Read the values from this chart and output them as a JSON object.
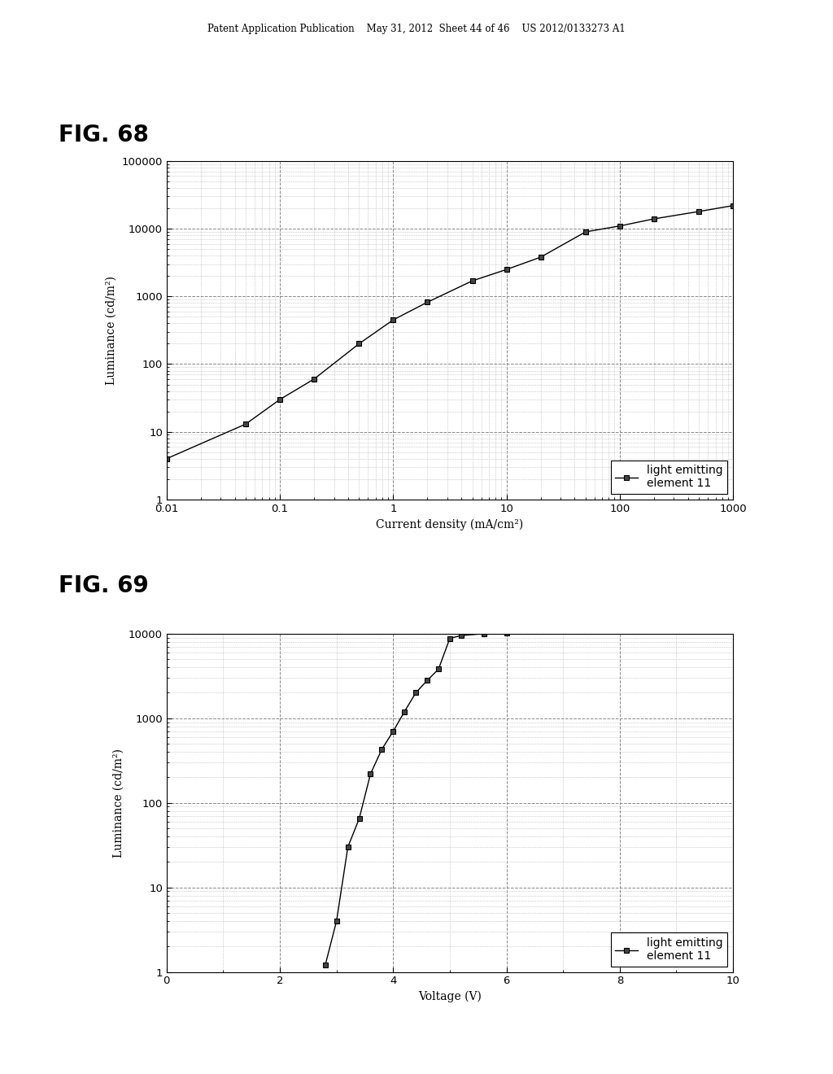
{
  "header_text": "Patent Application Publication    May 31, 2012  Sheet 44 of 46    US 2012/0133273 A1",
  "fig68_label": "FIG. 68",
  "fig69_label": "FIG. 69",
  "fig68": {
    "x": [
      0.01,
      0.05,
      0.1,
      0.2,
      0.5,
      1.0,
      2.0,
      5.0,
      10.0,
      20.0,
      50.0,
      100.0,
      200.0,
      500.0,
      1000.0
    ],
    "y": [
      4.0,
      13.0,
      30.0,
      60.0,
      200.0,
      450.0,
      820.0,
      1700.0,
      2500.0,
      3800.0,
      9000.0,
      11000.0,
      14000.0,
      18000.0,
      22000.0
    ],
    "xlabel": "Current density (mA/cm²)",
    "ylabel": "Luminance (cd/m²)",
    "xlim": [
      0.01,
      1000
    ],
    "ylim": [
      1,
      100000
    ],
    "legend_label": "light emitting\nelement 11"
  },
  "fig69": {
    "x": [
      2.8,
      3.0,
      3.2,
      3.4,
      3.6,
      3.8,
      4.0,
      4.2,
      4.4,
      4.6,
      4.8,
      5.0,
      5.2,
      5.6,
      6.0
    ],
    "y": [
      1.2,
      4.0,
      30.0,
      65.0,
      220.0,
      430.0,
      700.0,
      1200.0,
      2000.0,
      2800.0,
      3800.0,
      8800.0,
      9500.0,
      10000.0,
      10200.0
    ],
    "xlabel": "Voltage (V)",
    "ylabel": "Luminance (cd/m²)",
    "xlim": [
      0,
      10
    ],
    "ylim": [
      1,
      10000
    ],
    "legend_label": "light emitting\nelement 11"
  },
  "bg_color": "#ffffff",
  "line_color": "#000000",
  "marker": "s",
  "marker_size": 5,
  "marker_facecolor": "#444444",
  "marker_edgecolor": "#000000",
  "grid_major_linestyle": "--",
  "grid_minor_linestyle": ":",
  "grid_major_color": "#888888",
  "grid_minor_color": "#aaaaaa"
}
